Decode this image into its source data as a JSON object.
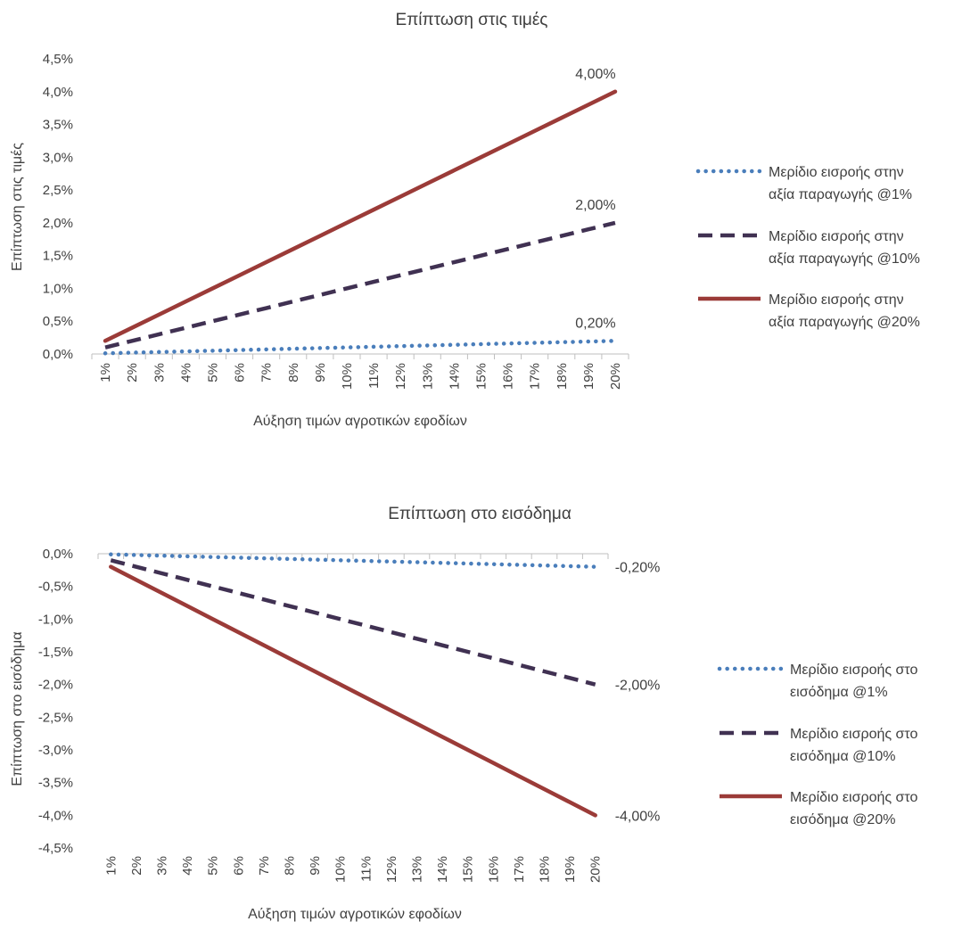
{
  "chart_data": [
    {
      "type": "line",
      "title": "Επίπτωση στις τιμές",
      "xlabel": "Αύξηση τιμών αγροτικών εφοδίων",
      "ylabel": "Επίπτωση στις τιμές",
      "categories": [
        "1%",
        "2%",
        "3%",
        "4%",
        "5%",
        "6%",
        "7%",
        "8%",
        "9%",
        "10%",
        "11%",
        "12%",
        "13%",
        "14%",
        "15%",
        "16%",
        "17%",
        "18%",
        "19%",
        "20%"
      ],
      "y_ticks": [
        "0,0%",
        "0,5%",
        "1,0%",
        "1,5%",
        "2,0%",
        "2,5%",
        "3,0%",
        "3,5%",
        "4,0%",
        "4,5%"
      ],
      "ylim": [
        0,
        4.5
      ],
      "grid": false,
      "legend_position": "right",
      "series": [
        {
          "name": "Μερίδιο εισροής στην αξία παραγωγής @1%",
          "name_lines": [
            "Μερίδιο εισροής στην",
            "αξία παραγωγής @1%"
          ],
          "style": "dotted",
          "color": "#4a7ebb",
          "values": [
            0.01,
            0.02,
            0.03,
            0.04,
            0.05,
            0.06,
            0.07,
            0.08,
            0.09,
            0.1,
            0.11,
            0.12,
            0.13,
            0.14,
            0.15,
            0.16,
            0.17,
            0.18,
            0.19,
            0.2
          ],
          "end_label": "0,20%"
        },
        {
          "name": "Μερίδιο εισροής στην αξία παραγωγής @10%",
          "name_lines": [
            "Μερίδιο εισροής στην",
            "αξία παραγωγής @10%"
          ],
          "style": "dashed",
          "color": "#403152",
          "values": [
            0.1,
            0.2,
            0.3,
            0.4,
            0.5,
            0.6,
            0.7,
            0.8,
            0.9,
            1.0,
            1.1,
            1.2,
            1.3,
            1.4,
            1.5,
            1.6,
            1.7,
            1.8,
            1.9,
            2.0
          ],
          "end_label": "2,00%"
        },
        {
          "name": "Μερίδιο εισροής στην αξία παραγωγής @20%",
          "name_lines": [
            "Μερίδιο εισροής στην",
            "αξία παραγωγής @20%"
          ],
          "style": "solid",
          "color": "#9b3b38",
          "values": [
            0.2,
            0.4,
            0.6,
            0.8,
            1.0,
            1.2,
            1.4,
            1.6,
            1.8,
            2.0,
            2.2,
            2.4,
            2.6,
            2.8,
            3.0,
            3.2,
            3.4,
            3.6,
            3.8,
            4.0
          ],
          "end_label": "4,00%"
        }
      ]
    },
    {
      "type": "line",
      "title": "Επίπτωση στο εισόδημα",
      "xlabel": "Αύξηση τιμών αγροτικών εφοδίων",
      "ylabel": "Επίπτωση στο εισόδημα",
      "categories": [
        "1%",
        "2%",
        "3%",
        "4%",
        "5%",
        "6%",
        "7%",
        "8%",
        "9%",
        "10%",
        "11%",
        "12%",
        "13%",
        "14%",
        "15%",
        "16%",
        "17%",
        "18%",
        "19%",
        "20%"
      ],
      "y_ticks": [
        "0,0%",
        "-0,5%",
        "-1,0%",
        "-1,5%",
        "-2,0%",
        "-2,5%",
        "-3,0%",
        "-3,5%",
        "-4,0%",
        "-4,5%"
      ],
      "ylim": [
        -4.5,
        0
      ],
      "grid": false,
      "legend_position": "right",
      "series": [
        {
          "name": "Μερίδιο εισροής στο εισόδημα @1%",
          "name_lines": [
            "Μερίδιο εισροής στο",
            "εισόδημα @1%"
          ],
          "style": "dotted",
          "color": "#4a7ebb",
          "values": [
            -0.01,
            -0.02,
            -0.03,
            -0.04,
            -0.05,
            -0.06,
            -0.07,
            -0.08,
            -0.09,
            -0.1,
            -0.11,
            -0.12,
            -0.13,
            -0.14,
            -0.15,
            -0.16,
            -0.17,
            -0.18,
            -0.19,
            -0.2
          ],
          "end_label": "-0,20%"
        },
        {
          "name": "Μερίδιο εισροής στο εισόδημα @10%",
          "name_lines": [
            "Μερίδιο εισροής στο",
            "εισόδημα @10%"
          ],
          "style": "dashed",
          "color": "#403152",
          "values": [
            -0.1,
            -0.2,
            -0.3,
            -0.4,
            -0.5,
            -0.6,
            -0.7,
            -0.8,
            -0.9,
            -1.0,
            -1.1,
            -1.2,
            -1.3,
            -1.4,
            -1.5,
            -1.6,
            -1.7,
            -1.8,
            -1.9,
            -2.0
          ],
          "end_label": "-2,00%"
        },
        {
          "name": "Μερίδιο εισροής στο εισόδημα @20%",
          "name_lines": [
            "Μερίδιο εισροής στο",
            "εισόδημα @20%"
          ],
          "style": "solid",
          "color": "#9b3b38",
          "values": [
            -0.2,
            -0.4,
            -0.6,
            -0.8,
            -1.0,
            -1.2,
            -1.4,
            -1.6,
            -1.8,
            -2.0,
            -2.2,
            -2.4,
            -2.6,
            -2.8,
            -3.0,
            -3.2,
            -3.4,
            -3.6,
            -3.8,
            -4.0
          ],
          "end_label": "-4,00%"
        }
      ]
    }
  ]
}
